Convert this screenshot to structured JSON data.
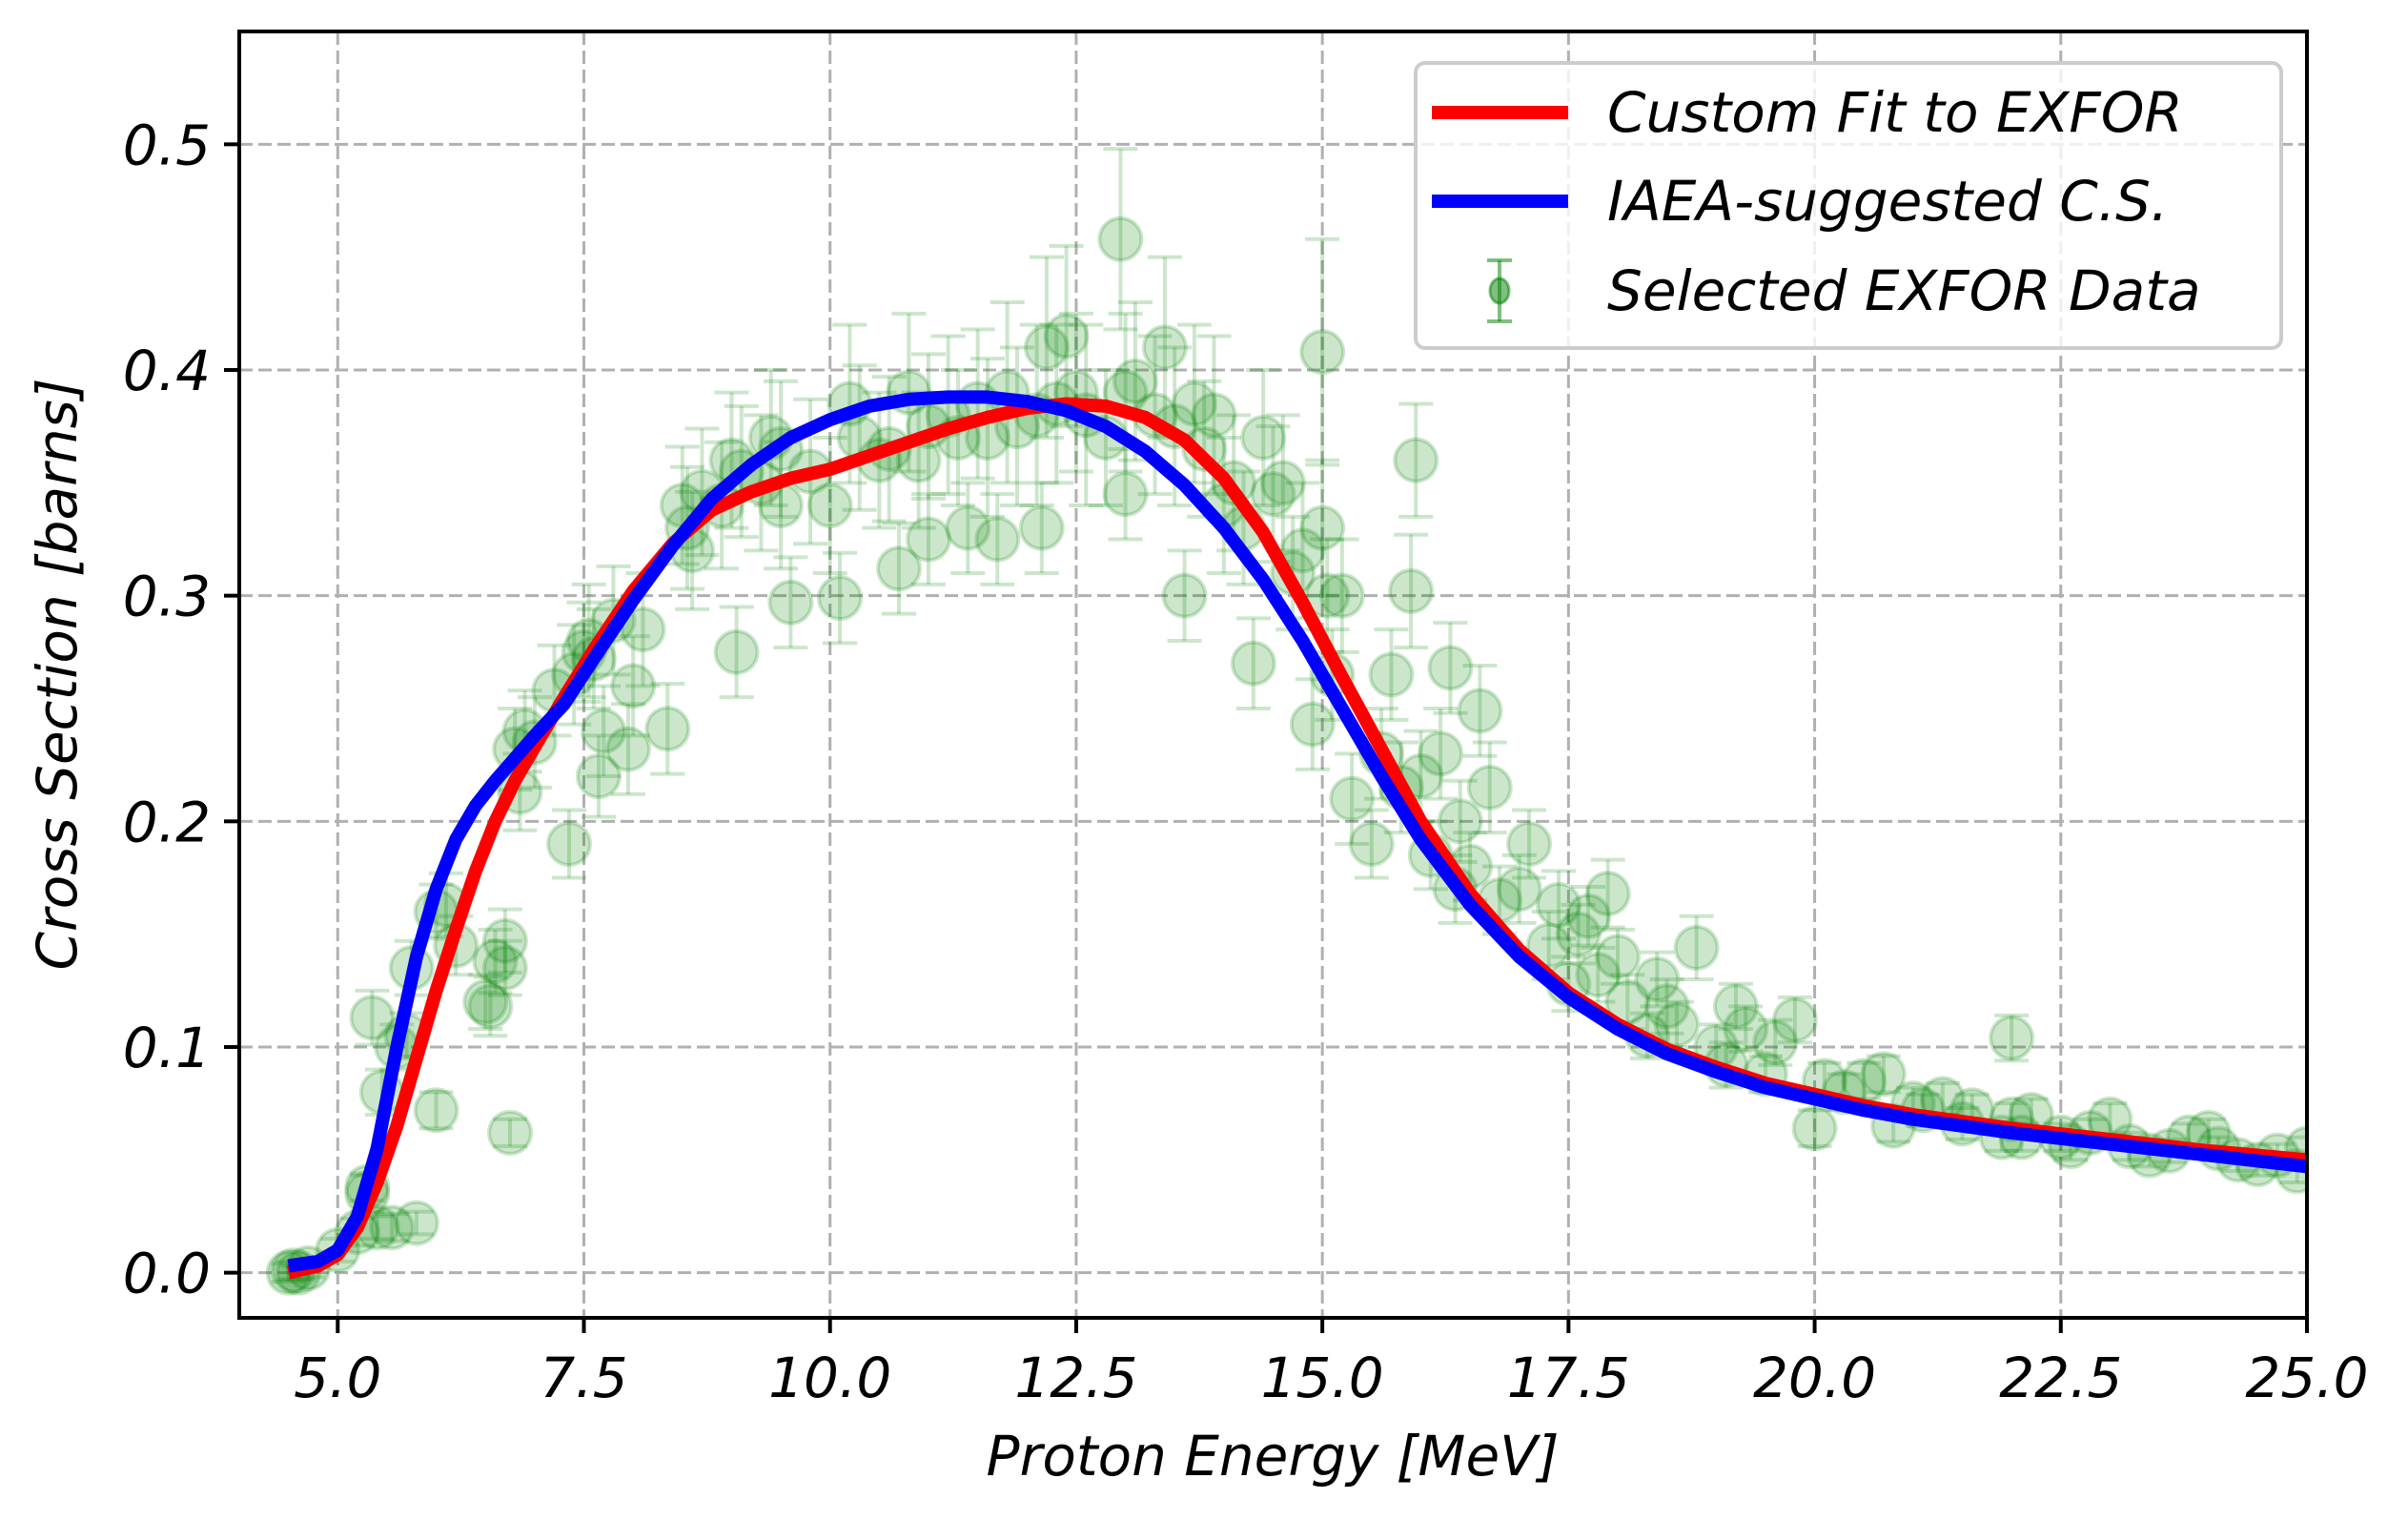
{
  "chart_data": {
    "type": "scatter",
    "title": "",
    "xlabel": "Proton Energy [MeV]",
    "ylabel": "Cross Section [barns]",
    "xlim": [
      4.0,
      25.0
    ],
    "ylim": [
      -0.02,
      0.55
    ],
    "xticks": [
      5.0,
      7.5,
      10.0,
      12.5,
      15.0,
      17.5,
      20.0,
      22.5,
      25.0
    ],
    "xtick_labels": [
      "5.0",
      "7.5",
      "10.0",
      "12.5",
      "15.0",
      "17.5",
      "20.0",
      "22.5",
      "25.0"
    ],
    "yticks": [
      0.0,
      0.1,
      0.2,
      0.3,
      0.4,
      0.5
    ],
    "ytick_labels": [
      "0.0",
      "0.1",
      "0.2",
      "0.3",
      "0.4",
      "0.5"
    ],
    "grid": true,
    "legend": {
      "placement": "top-right",
      "entries": [
        {
          "label": "Custom Fit to EXFOR",
          "kind": "line",
          "color": "#ff0000"
        },
        {
          "label": "IAEA-suggested C.S.",
          "kind": "line",
          "color": "#0000ff"
        },
        {
          "label": "Selected EXFOR Data",
          "kind": "errorbar",
          "color": "#008000"
        }
      ]
    },
    "series": [
      {
        "name": "Custom Fit to EXFOR",
        "type": "line",
        "color": "#ff0000",
        "x": [
          4.5,
          4.8,
          5.0,
          5.2,
          5.4,
          5.6,
          5.8,
          6.0,
          6.2,
          6.4,
          6.6,
          6.8,
          7.0,
          7.3,
          7.6,
          8.0,
          8.4,
          8.8,
          9.2,
          9.6,
          10.0,
          10.4,
          10.8,
          11.2,
          11.6,
          12.0,
          12.4,
          12.8,
          13.2,
          13.6,
          14.0,
          14.4,
          14.8,
          15.2,
          15.6,
          16.0,
          16.5,
          17.0,
          17.5,
          18.0,
          18.5,
          19.0,
          19.5,
          20.0,
          20.5,
          21.0,
          22.0,
          23.0,
          24.0,
          25.0
        ],
        "y": [
          0.0,
          0.003,
          0.008,
          0.02,
          0.04,
          0.065,
          0.095,
          0.125,
          0.152,
          0.178,
          0.2,
          0.218,
          0.233,
          0.255,
          0.276,
          0.302,
          0.323,
          0.338,
          0.346,
          0.352,
          0.356,
          0.362,
          0.368,
          0.374,
          0.379,
          0.383,
          0.385,
          0.384,
          0.379,
          0.369,
          0.352,
          0.328,
          0.297,
          0.264,
          0.232,
          0.2,
          0.168,
          0.143,
          0.124,
          0.11,
          0.099,
          0.091,
          0.084,
          0.079,
          0.074,
          0.07,
          0.064,
          0.059,
          0.054,
          0.05
        ]
      },
      {
        "name": "IAEA-suggested C.S.",
        "type": "line",
        "color": "#0000ff",
        "x": [
          4.5,
          4.8,
          5.0,
          5.2,
          5.4,
          5.6,
          5.8,
          6.0,
          6.2,
          6.4,
          6.6,
          6.8,
          7.0,
          7.3,
          7.6,
          8.0,
          8.4,
          8.8,
          9.2,
          9.6,
          10.0,
          10.4,
          10.8,
          11.2,
          11.6,
          12.0,
          12.4,
          12.8,
          13.2,
          13.6,
          14.0,
          14.4,
          14.8,
          15.2,
          15.6,
          16.0,
          16.5,
          17.0,
          17.5,
          18.0,
          18.5,
          19.0,
          19.5,
          20.0,
          20.5,
          21.0,
          22.0,
          23.0,
          24.0,
          25.0
        ],
        "y": [
          0.003,
          0.005,
          0.01,
          0.025,
          0.055,
          0.1,
          0.14,
          0.17,
          0.192,
          0.207,
          0.218,
          0.228,
          0.238,
          0.252,
          0.272,
          0.298,
          0.322,
          0.343,
          0.358,
          0.37,
          0.378,
          0.384,
          0.387,
          0.388,
          0.388,
          0.386,
          0.382,
          0.375,
          0.364,
          0.349,
          0.33,
          0.307,
          0.28,
          0.25,
          0.22,
          0.192,
          0.163,
          0.14,
          0.122,
          0.108,
          0.097,
          0.089,
          0.082,
          0.077,
          0.072,
          0.068,
          0.062,
          0.057,
          0.052,
          0.047
        ]
      },
      {
        "name": "Selected EXFOR Data",
        "type": "errorbar",
        "color": "#008000",
        "points": [
          [
            4.5,
            0.0,
            0.004
          ],
          [
            4.55,
            0.001,
            0.004
          ],
          [
            4.6,
            0.0,
            0.003
          ],
          [
            4.7,
            0.002,
            0.004
          ],
          [
            5.0,
            0.01,
            0.005
          ],
          [
            5.2,
            0.018,
            0.006
          ],
          [
            5.3,
            0.035,
            0.008
          ],
          [
            5.3,
            0.038,
            0.006
          ],
          [
            5.35,
            0.113,
            0.012
          ],
          [
            5.4,
            0.02,
            0.005
          ],
          [
            5.45,
            0.08,
            0.01
          ],
          [
            5.55,
            0.02,
            0.006
          ],
          [
            5.6,
            0.1,
            0.01
          ],
          [
            5.7,
            0.105,
            0.01
          ],
          [
            5.75,
            0.135,
            0.012
          ],
          [
            5.8,
            0.022,
            0.005
          ],
          [
            6.0,
            0.072,
            0.008
          ],
          [
            6.0,
            0.16,
            0.012
          ],
          [
            6.1,
            0.163,
            0.014
          ],
          [
            6.2,
            0.145,
            0.013
          ],
          [
            6.5,
            0.12,
            0.012
          ],
          [
            6.55,
            0.118,
            0.013
          ],
          [
            6.6,
            0.138,
            0.014
          ],
          [
            6.7,
            0.147,
            0.014
          ],
          [
            6.7,
            0.135,
            0.012
          ],
          [
            6.75,
            0.062,
            0.006
          ],
          [
            6.8,
            0.232,
            0.018
          ],
          [
            6.85,
            0.213,
            0.017
          ],
          [
            6.9,
            0.24,
            0.018
          ],
          [
            7.0,
            0.235,
            0.02
          ],
          [
            7.2,
            0.258,
            0.02
          ],
          [
            7.35,
            0.19,
            0.015
          ],
          [
            7.4,
            0.265,
            0.022
          ],
          [
            7.5,
            0.275,
            0.022
          ],
          [
            7.55,
            0.28,
            0.025
          ],
          [
            7.6,
            0.272,
            0.022
          ],
          [
            7.65,
            0.22,
            0.018
          ],
          [
            7.7,
            0.24,
            0.02
          ],
          [
            7.8,
            0.289,
            0.024
          ],
          [
            7.95,
            0.232,
            0.02
          ],
          [
            8.0,
            0.26,
            0.022
          ],
          [
            8.1,
            0.285,
            0.025
          ],
          [
            8.35,
            0.241,
            0.02
          ],
          [
            8.5,
            0.34,
            0.026
          ],
          [
            8.55,
            0.33,
            0.027
          ],
          [
            8.6,
            0.32,
            0.026
          ],
          [
            8.7,
            0.346,
            0.028
          ],
          [
            8.9,
            0.34,
            0.028
          ],
          [
            9.0,
            0.36,
            0.03
          ],
          [
            9.05,
            0.275,
            0.02
          ],
          [
            9.1,
            0.355,
            0.029
          ],
          [
            9.3,
            0.35,
            0.03
          ],
          [
            9.4,
            0.37,
            0.03
          ],
          [
            9.5,
            0.34,
            0.028
          ],
          [
            9.5,
            0.365,
            0.03
          ],
          [
            9.6,
            0.297,
            0.02
          ],
          [
            9.8,
            0.355,
            0.032
          ],
          [
            10.0,
            0.34,
            0.03
          ],
          [
            10.1,
            0.299,
            0.02
          ],
          [
            10.2,
            0.385,
            0.035
          ],
          [
            10.3,
            0.37,
            0.032
          ],
          [
            10.5,
            0.36,
            0.03
          ],
          [
            10.6,
            0.365,
            0.032
          ],
          [
            10.7,
            0.312,
            0.02
          ],
          [
            10.8,
            0.39,
            0.035
          ],
          [
            10.9,
            0.36,
            0.03
          ],
          [
            11.0,
            0.375,
            0.032
          ],
          [
            11.0,
            0.325,
            0.02
          ],
          [
            11.2,
            0.38,
            0.035
          ],
          [
            11.3,
            0.37,
            0.03
          ],
          [
            11.4,
            0.33,
            0.02
          ],
          [
            11.5,
            0.385,
            0.033
          ],
          [
            11.6,
            0.37,
            0.035
          ],
          [
            11.7,
            0.325,
            0.02
          ],
          [
            11.8,
            0.39,
            0.04
          ],
          [
            11.9,
            0.375,
            0.035
          ],
          [
            12.1,
            0.38,
            0.04
          ],
          [
            12.15,
            0.33,
            0.02
          ],
          [
            12.2,
            0.41,
            0.04
          ],
          [
            12.3,
            0.385,
            0.035
          ],
          [
            12.4,
            0.415,
            0.04
          ],
          [
            12.5,
            0.39,
            0.035
          ],
          [
            12.6,
            0.38,
            0.04
          ],
          [
            12.8,
            0.37,
            0.03
          ],
          [
            12.95,
            0.458,
            0.04
          ],
          [
            13.0,
            0.345,
            0.02
          ],
          [
            13.0,
            0.39,
            0.035
          ],
          [
            13.1,
            0.395,
            0.035
          ],
          [
            13.3,
            0.38,
            0.035
          ],
          [
            13.4,
            0.41,
            0.04
          ],
          [
            13.5,
            0.375,
            0.035
          ],
          [
            13.6,
            0.3,
            0.02
          ],
          [
            13.7,
            0.385,
            0.035
          ],
          [
            13.8,
            0.365,
            0.03
          ],
          [
            13.9,
            0.38,
            0.035
          ],
          [
            14.0,
            0.34,
            0.03
          ],
          [
            14.1,
            0.35,
            0.03
          ],
          [
            14.2,
            0.33,
            0.025
          ],
          [
            14.3,
            0.27,
            0.02
          ],
          [
            14.4,
            0.37,
            0.03
          ],
          [
            14.5,
            0.345,
            0.03
          ],
          [
            14.6,
            0.35,
            0.03
          ],
          [
            14.7,
            0.31,
            0.025
          ],
          [
            14.8,
            0.32,
            0.03
          ],
          [
            14.9,
            0.243,
            0.02
          ],
          [
            15.0,
            0.408,
            0.05
          ],
          [
            15.0,
            0.33,
            0.03
          ],
          [
            15.05,
            0.3,
            0.025
          ],
          [
            15.1,
            0.265,
            0.02
          ],
          [
            15.2,
            0.3,
            0.025
          ],
          [
            15.3,
            0.21,
            0.02
          ],
          [
            15.5,
            0.19,
            0.015
          ],
          [
            15.6,
            0.23,
            0.02
          ],
          [
            15.7,
            0.265,
            0.02
          ],
          [
            15.8,
            0.215,
            0.02
          ],
          [
            15.9,
            0.302,
            0.025
          ],
          [
            15.95,
            0.36,
            0.025
          ],
          [
            16.0,
            0.22,
            0.02
          ],
          [
            16.1,
            0.185,
            0.015
          ],
          [
            16.2,
            0.23,
            0.02
          ],
          [
            16.3,
            0.268,
            0.02
          ],
          [
            16.35,
            0.17,
            0.015
          ],
          [
            16.4,
            0.2,
            0.018
          ],
          [
            16.5,
            0.18,
            0.015
          ],
          [
            16.6,
            0.249,
            0.02
          ],
          [
            16.7,
            0.215,
            0.02
          ],
          [
            16.8,
            0.165,
            0.015
          ],
          [
            17.0,
            0.17,
            0.015
          ],
          [
            17.1,
            0.19,
            0.015
          ],
          [
            17.3,
            0.145,
            0.015
          ],
          [
            17.4,
            0.163,
            0.015
          ],
          [
            17.5,
            0.128,
            0.012
          ],
          [
            17.6,
            0.15,
            0.013
          ],
          [
            17.7,
            0.158,
            0.013
          ],
          [
            17.8,
            0.132,
            0.012
          ],
          [
            17.9,
            0.168,
            0.015
          ],
          [
            18.0,
            0.14,
            0.012
          ],
          [
            18.1,
            0.12,
            0.012
          ],
          [
            18.3,
            0.105,
            0.01
          ],
          [
            18.4,
            0.13,
            0.012
          ],
          [
            18.5,
            0.118,
            0.012
          ],
          [
            18.6,
            0.11,
            0.01
          ],
          [
            18.8,
            0.144,
            0.014
          ],
          [
            19.0,
            0.1,
            0.01
          ],
          [
            19.1,
            0.092,
            0.01
          ],
          [
            19.2,
            0.118,
            0.01
          ],
          [
            19.3,
            0.108,
            0.01
          ],
          [
            19.5,
            0.088,
            0.008
          ],
          [
            19.6,
            0.102,
            0.01
          ],
          [
            19.8,
            0.112,
            0.01
          ],
          [
            20.0,
            0.064,
            0.008
          ],
          [
            20.1,
            0.085,
            0.008
          ],
          [
            20.3,
            0.08,
            0.008
          ],
          [
            20.5,
            0.085,
            0.008
          ],
          [
            20.7,
            0.088,
            0.008
          ],
          [
            20.8,
            0.065,
            0.007
          ],
          [
            21.0,
            0.075,
            0.007
          ],
          [
            21.1,
            0.072,
            0.007
          ],
          [
            21.3,
            0.077,
            0.007
          ],
          [
            21.5,
            0.066,
            0.007
          ],
          [
            21.6,
            0.072,
            0.007
          ],
          [
            21.9,
            0.06,
            0.006
          ],
          [
            22.0,
            0.068,
            0.007
          ],
          [
            22.0,
            0.104,
            0.01
          ],
          [
            22.1,
            0.06,
            0.006
          ],
          [
            22.2,
            0.07,
            0.007
          ],
          [
            22.5,
            0.06,
            0.006
          ],
          [
            22.6,
            0.056,
            0.006
          ],
          [
            22.8,
            0.062,
            0.006
          ],
          [
            23.0,
            0.068,
            0.007
          ],
          [
            23.2,
            0.056,
            0.006
          ],
          [
            23.4,
            0.052,
            0.005
          ],
          [
            23.6,
            0.054,
            0.005
          ],
          [
            23.8,
            0.06,
            0.006
          ],
          [
            24.0,
            0.062,
            0.006
          ],
          [
            24.1,
            0.055,
            0.005
          ],
          [
            24.3,
            0.05,
            0.005
          ],
          [
            24.5,
            0.048,
            0.005
          ],
          [
            24.7,
            0.052,
            0.005
          ],
          [
            24.9,
            0.045,
            0.005
          ],
          [
            25.0,
            0.055,
            0.005
          ]
        ]
      }
    ]
  }
}
